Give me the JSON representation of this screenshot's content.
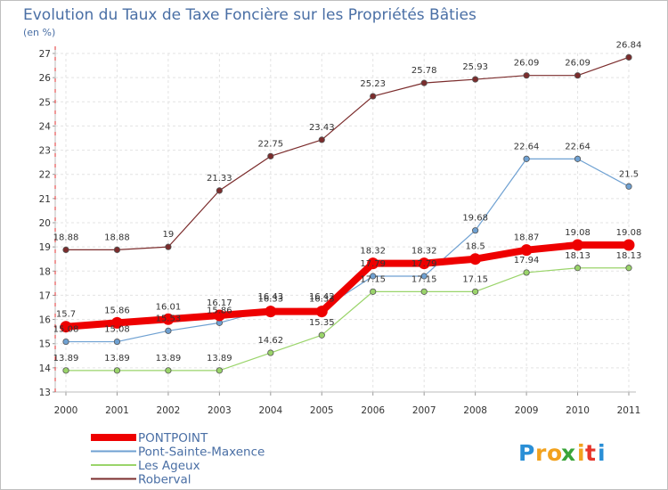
{
  "chart_data": {
    "type": "line",
    "title": "Evolution du Taux de Taxe Foncière sur les Propriétés Bâties",
    "subtitle": "(en %)",
    "xlabel": "",
    "ylabel": "",
    "x": [
      "2000",
      "2001",
      "2002",
      "2003",
      "2004",
      "2005",
      "2006",
      "2007",
      "2008",
      "2009",
      "2010",
      "2011"
    ],
    "ylim": [
      13,
      27
    ],
    "yticks": [
      "13",
      "14",
      "15",
      "16",
      "17",
      "18",
      "19",
      "20",
      "21",
      "22",
      "23",
      "24",
      "25",
      "26",
      "27"
    ],
    "grid": true,
    "legend_position": "bottom-left",
    "series": [
      {
        "name": "Roberval",
        "color": "#7b2c2c",
        "values": [
          18.88,
          18.88,
          19,
          21.33,
          22.75,
          23.43,
          25.23,
          25.78,
          25.93,
          26.09,
          26.09,
          26.84
        ],
        "labels": [
          "18.88",
          "18.88",
          "19",
          "21.33",
          "22.75",
          "23.43",
          "25.23",
          "25.78",
          "25.93",
          "26.09",
          "26.09",
          "26.84"
        ]
      },
      {
        "name": "Pont-Sainte-Maxence",
        "color": "#6fa1d2",
        "values": [
          15.08,
          15.08,
          15.53,
          15.86,
          16.43,
          16.42,
          17.79,
          17.79,
          19.68,
          22.64,
          22.64,
          21.5
        ],
        "labels": [
          "15.08",
          "15.08",
          "15.53",
          "15.86",
          "16.43",
          "16.42",
          "17.79",
          "17.79",
          "19.68",
          "22.64",
          "22.64",
          "21.5"
        ]
      },
      {
        "name": "Les Ageux",
        "color": "#9ad46a",
        "values": [
          13.89,
          13.89,
          13.89,
          13.89,
          14.62,
          15.35,
          17.15,
          17.15,
          17.15,
          17.94,
          18.13,
          18.13
        ],
        "labels": [
          "13.89",
          "13.89",
          "13.89",
          "13.89",
          "14.62",
          "15.35",
          "17.15",
          "17.15",
          "17.15",
          "17.94",
          "18.13",
          "18.13"
        ]
      },
      {
        "name": "PONTPOINT",
        "color": "#ee0000",
        "values": [
          15.7,
          15.86,
          16.01,
          16.17,
          16.33,
          16.33,
          18.32,
          18.32,
          18.5,
          18.87,
          19.08,
          19.08
        ],
        "labels": [
          "15.7",
          "15.86",
          "16.01",
          "16.17",
          "16.33",
          "16.33",
          "18.32",
          "18.32",
          "18.5",
          "18.87",
          "19.08",
          "19.08"
        ]
      }
    ],
    "legend": [
      "PONTPOINT",
      "Pont-Sainte-Maxence",
      "Les Ageux",
      "Roberval"
    ]
  },
  "logo": {
    "letters": [
      "P",
      "r",
      "o",
      "x",
      "i",
      "t",
      "i"
    ],
    "colors": [
      "#2a8fd6",
      "#f2a21e",
      "#f2a21e",
      "#3aa43a",
      "#f2a21e",
      "#e7352a",
      "#2a8fd6"
    ]
  }
}
